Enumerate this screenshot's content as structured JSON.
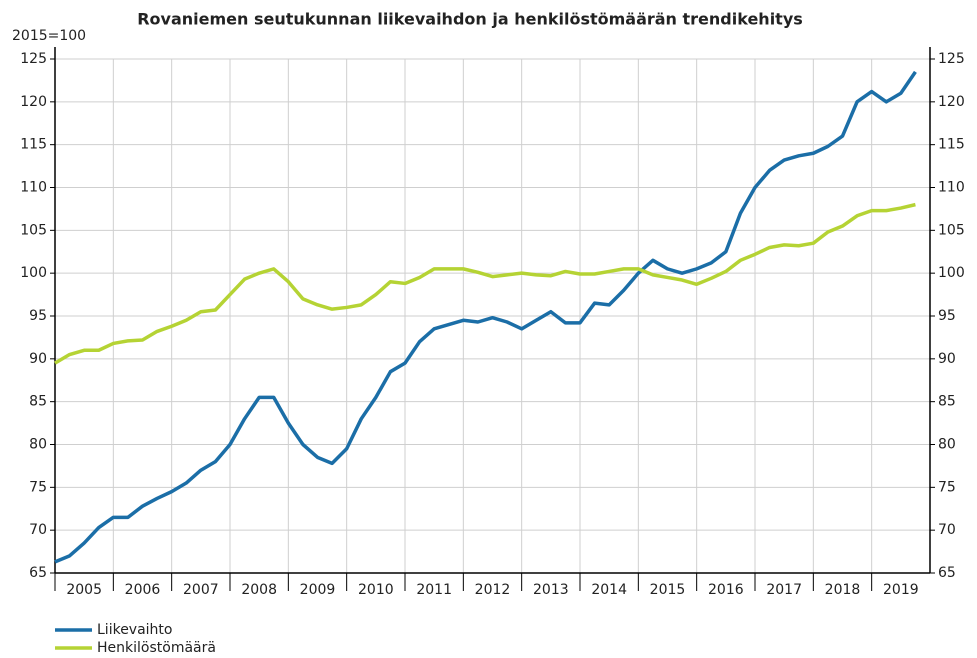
{
  "chart_data": {
    "type": "line",
    "title": "Rovaniemen seutukunnan liikevaihdon ja henkilöstömäärän trendikehitys",
    "y_label": "2015=100",
    "categories": [
      "2005",
      "2006",
      "2007",
      "2008",
      "2009",
      "2010",
      "2011",
      "2012",
      "2013",
      "2014",
      "2015",
      "2016",
      "2017",
      "2018",
      "2019"
    ],
    "x": [
      2005.0,
      2005.25,
      2005.5,
      2005.75,
      2006.0,
      2006.25,
      2006.5,
      2006.75,
      2007.0,
      2007.25,
      2007.5,
      2007.75,
      2008.0,
      2008.25,
      2008.5,
      2008.75,
      2009.0,
      2009.25,
      2009.5,
      2009.75,
      2010.0,
      2010.25,
      2010.5,
      2010.75,
      2011.0,
      2011.25,
      2011.5,
      2011.75,
      2012.0,
      2012.25,
      2012.5,
      2012.75,
      2013.0,
      2013.25,
      2013.5,
      2013.75,
      2014.0,
      2014.25,
      2014.5,
      2014.75,
      2015.0,
      2015.25,
      2015.5,
      2015.75,
      2016.0,
      2016.25,
      2016.5,
      2016.75,
      2017.0,
      2017.25,
      2017.5,
      2017.75,
      2018.0,
      2018.25,
      2018.5,
      2018.75,
      2019.0,
      2019.25,
      2019.5,
      2019.75
    ],
    "xlim": [
      2005,
      2020
    ],
    "series": [
      {
        "name": "Liikevaihto",
        "color": "#1b6ea7",
        "values": [
          66.3,
          67,
          68.5,
          70.3,
          71.5,
          71.5,
          72.8,
          73.7,
          74.5,
          75.5,
          77,
          78,
          80,
          83,
          85.5,
          85.5,
          82.5,
          80,
          78.5,
          77.8,
          79.5,
          83,
          85.5,
          88.5,
          89.5,
          92,
          93.5,
          94,
          94.5,
          94.3,
          94.8,
          94.3,
          93.5,
          94.5,
          95.5,
          94.2,
          94.2,
          96.5,
          96.3,
          98,
          100,
          101.5,
          100.5,
          100,
          100.5,
          101.2,
          102.5,
          107,
          110,
          112,
          113.2,
          113.7,
          114,
          114.8,
          116,
          120,
          121.2,
          120,
          121,
          123.5
        ]
      },
      {
        "name": "Henkilöstömäärä",
        "color": "#b5d334",
        "values": [
          89.5,
          90.5,
          91,
          91,
          91.8,
          92.1,
          92.2,
          93.2,
          93.8,
          94.5,
          95.5,
          95.7,
          97.5,
          99.3,
          100,
          100.5,
          99,
          97,
          96.3,
          95.8,
          96,
          96.3,
          97.5,
          99,
          98.8,
          99.5,
          100.5,
          100.5,
          100.5,
          100.1,
          99.6,
          99.8,
          100,
          99.8,
          99.7,
          100.2,
          99.9,
          99.9,
          100.2,
          100.5,
          100.5,
          99.8,
          99.5,
          99.2,
          98.7,
          99.4,
          100.2,
          101.5,
          102.2,
          103,
          103.3,
          103.2,
          103.5,
          104.8,
          105.5,
          106.7,
          107.3,
          107.3,
          107.6,
          108
        ]
      }
    ],
    "ylim": [
      65,
      125
    ],
    "yticks": [
      65,
      70,
      75,
      80,
      85,
      90,
      95,
      100,
      105,
      110,
      115,
      120,
      125
    ],
    "y2lim": [
      65,
      125
    ],
    "y2ticks": [
      65,
      70,
      75,
      80,
      85,
      90,
      95,
      100,
      105,
      110,
      115,
      120,
      125
    ],
    "grid": true,
    "legend": "bottom-left"
  }
}
